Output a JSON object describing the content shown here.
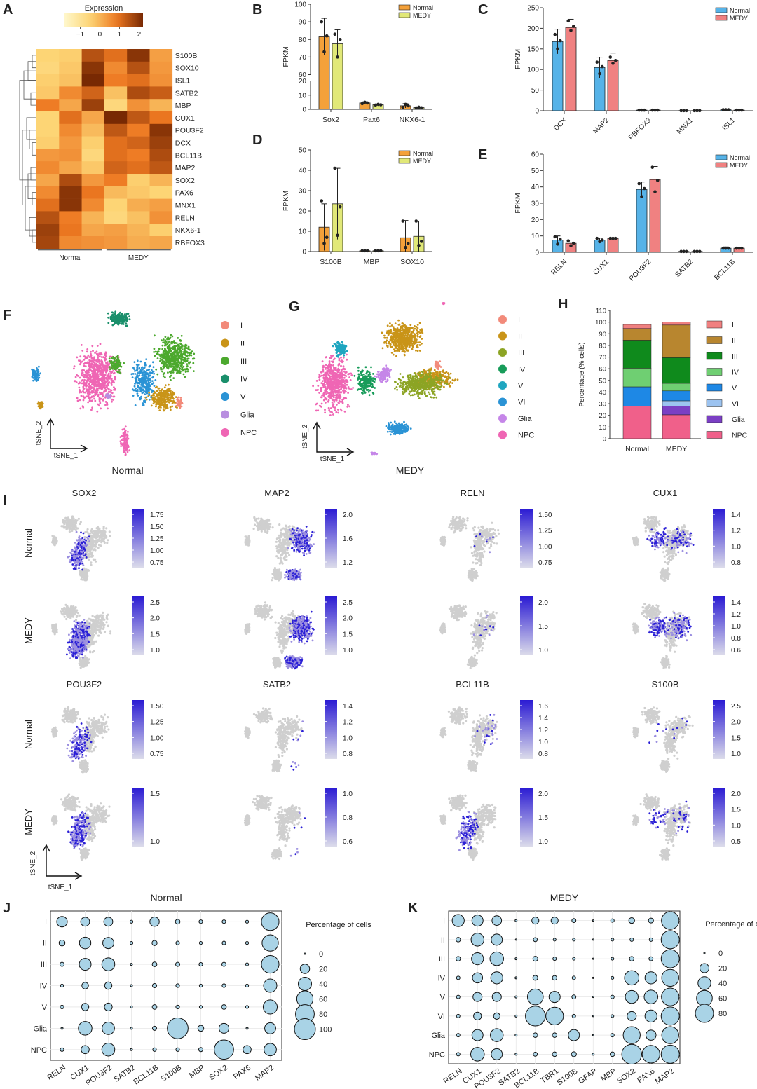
{
  "panels": {
    "A": {
      "letter": "A",
      "legend_title": "Expression",
      "legend_ticks": [
        "−1",
        "0",
        "1",
        "2"
      ],
      "legend_values": [
        -1,
        0,
        1,
        2
      ],
      "legend_range": [
        -1.8,
        2.2
      ],
      "genes": [
        "S100B",
        "SOX10",
        "ISL1",
        "SATB2",
        "MBP",
        "CUX1",
        "POU3F2",
        "DCX",
        "BCL11B",
        "MAP2",
        "SOX2",
        "PAX6",
        "MNX1",
        "RELN",
        "NKX6-1",
        "RBFOX3"
      ],
      "groups": [
        "Normal",
        "MEDY"
      ],
      "matrix": [
        [
          -0.5,
          -0.4,
          1.5,
          1.0,
          2.0,
          0.3
        ],
        [
          -0.6,
          -0.3,
          2.0,
          0.6,
          1.5,
          0.4
        ],
        [
          -0.4,
          -0.2,
          2.2,
          0.8,
          1.0,
          0.5
        ],
        [
          -0.3,
          0.6,
          1.2,
          -0.2,
          1.6,
          1.3
        ],
        [
          0.8,
          0.2,
          1.8,
          -0.6,
          0.5,
          0.0
        ],
        [
          -0.5,
          1.0,
          0.2,
          2.2,
          1.4,
          0.9
        ],
        [
          -0.5,
          0.6,
          -0.1,
          1.4,
          0.8,
          2.0
        ],
        [
          -0.4,
          0.4,
          -0.4,
          1.0,
          1.2,
          1.8
        ],
        [
          0.4,
          0.5,
          -0.6,
          1.0,
          0.8,
          1.6
        ],
        [
          0.6,
          0.2,
          -0.3,
          1.2,
          1.0,
          1.4
        ],
        [
          0.2,
          1.6,
          0.4,
          0.8,
          -0.4,
          0.0
        ],
        [
          0.6,
          2.0,
          0.9,
          -0.1,
          -0.3,
          -0.5
        ],
        [
          1.0,
          2.0,
          0.6,
          -0.5,
          0.1,
          0.3
        ],
        [
          1.5,
          0.8,
          0.0,
          -0.6,
          -0.2,
          0.5
        ],
        [
          1.8,
          0.9,
          0.2,
          0.3,
          0.0,
          -0.4
        ],
        [
          1.7,
          0.6,
          0.5,
          0.4,
          0.1,
          0.2
        ]
      ]
    },
    "B": {
      "letter": "B",
      "ylabel": "FPKM",
      "legend": [
        "Normal",
        "MEDY"
      ],
      "colors": [
        "#f4a13a",
        "#e1e878"
      ],
      "categories": [
        "Sox2",
        "Pax6",
        "NKX6-1"
      ],
      "series": [
        {
          "name": "Normal",
          "values": [
            81.5,
            4.5,
            2.5
          ],
          "errors": [
            10.5,
            0.8,
            1.5
          ],
          "points": [
            [
              90,
              73,
              82
            ],
            [
              4.0,
              5.0,
              4.5
            ],
            [
              1.5,
              3.5,
              2.5
            ]
          ]
        },
        {
          "name": "MEDY",
          "values": [
            77.5,
            3.2,
            1.2
          ],
          "errors": [
            8.0,
            0.5,
            0.5
          ],
          "points": [
            [
              83,
              70,
              80
            ],
            [
              3.0,
              3.5,
              3.2
            ],
            [
              1.0,
              1.5,
              1.1
            ]
          ]
        }
      ],
      "lower_ticks": [
        "0",
        "10",
        "20"
      ],
      "upper_ticks": [
        "60",
        "70",
        "80",
        "90",
        "100"
      ],
      "break": [
        20,
        60
      ],
      "ylim": [
        0,
        100
      ]
    },
    "C": {
      "letter": "C",
      "ylabel": "FPKM",
      "legend": [
        "Normal",
        "MEDY"
      ],
      "colors": [
        "#56b3e8",
        "#f08181"
      ],
      "categories": [
        "DCX",
        "MAP2",
        "RBFOX3",
        "MNX1",
        "ISL1"
      ],
      "series": [
        {
          "name": "Normal",
          "values": [
            168,
            105,
            1.5,
            0.3,
            2.5
          ],
          "errors": [
            30,
            25,
            0.5,
            0.2,
            1.0
          ],
          "points": [
            [
              185,
              150,
              170
            ],
            [
              118,
              90,
              107
            ],
            [
              1.5,
              1.5,
              1.5
            ],
            [
              0.3,
              0.3,
              0.3
            ],
            [
              2.5,
              2.5,
              2.5
            ]
          ]
        },
        {
          "name": "MEDY",
          "values": [
            202,
            122,
            1.5,
            0.3,
            1.5
          ],
          "errors": [
            20,
            18,
            0.5,
            0.2,
            0.8
          ],
          "points": [
            [
              218,
              195,
              205
            ],
            [
              130,
              115,
              122
            ],
            [
              1.5,
              1.5,
              1.5
            ],
            [
              0.3,
              0.3,
              0.3
            ],
            [
              1.5,
              1.5,
              1.5
            ]
          ]
        }
      ],
      "ticks": [
        "0",
        "50",
        "100",
        "150",
        "200",
        "250"
      ],
      "ylim": [
        0,
        250
      ]
    },
    "D": {
      "letter": "D",
      "ylabel": "FPKM",
      "legend": [
        "Normal",
        "MEDY"
      ],
      "colors": [
        "#f4a13a",
        "#e1e878"
      ],
      "categories": [
        "S100B",
        "MBP",
        "SOX10"
      ],
      "series": [
        {
          "name": "Normal",
          "values": [
            12,
            0.4,
            6.8
          ],
          "errors": [
            11.5,
            0.2,
            8.5
          ],
          "points": [
            [
              25,
              4,
              7
            ],
            [
              0.4,
              0.4,
              0.4
            ],
            [
              15,
              2,
              4
            ]
          ]
        },
        {
          "name": "MEDY",
          "values": [
            23.5,
            0.4,
            7.5
          ],
          "errors": [
            17.5,
            0.2,
            7.5
          ],
          "points": [
            [
              41,
              8,
              22
            ],
            [
              0.4,
              0.4,
              0.4
            ],
            [
              15,
              3,
              5
            ]
          ]
        }
      ],
      "ticks": [
        "0",
        "10",
        "20",
        "30",
        "40",
        "50"
      ],
      "ylim": [
        0,
        50
      ]
    },
    "E": {
      "letter": "E",
      "ylabel": "FPKM",
      "legend": [
        "Normal",
        "MEDY"
      ],
      "colors": [
        "#56b3e8",
        "#f08181"
      ],
      "categories": [
        "RELN",
        "CUX1",
        "POU3F2",
        "SATB2",
        "BCL11B"
      ],
      "series": [
        {
          "name": "Normal",
          "values": [
            7.5,
            7.5,
            38.5,
            0.5,
            2.5
          ],
          "errors": [
            2.5,
            1.2,
            4.5,
            0.2,
            0.8
          ],
          "points": [
            [
              9.5,
              5,
              8
            ],
            [
              8.5,
              6.5,
              7.5
            ],
            [
              42,
              34,
              39
            ],
            [
              0.5,
              0.5,
              0.5
            ],
            [
              2.5,
              2.5,
              2.5
            ]
          ]
        },
        {
          "name": "MEDY",
          "values": [
            5.5,
            8.5,
            44.5,
            0.5,
            2.5
          ],
          "errors": [
            2.0,
            0.5,
            8.0,
            0.2,
            0.7
          ],
          "points": [
            [
              7,
              4,
              5.5
            ],
            [
              8.5,
              8.5,
              8.5
            ],
            [
              52,
              37,
              44
            ],
            [
              0.5,
              0.5,
              0.5
            ],
            [
              2.5,
              2.5,
              2.5
            ]
          ]
        }
      ],
      "ticks": [
        "0",
        "10",
        "20",
        "30",
        "40",
        "50",
        "60"
      ],
      "ylim": [
        0,
        60
      ]
    },
    "F": {
      "letter": "F",
      "label": "Normal",
      "xlabel": "tSNE_1",
      "ylabel": "tSNE_2",
      "legend": [
        "I",
        "II",
        "III",
        "IV",
        "V",
        "Glia",
        "NPC"
      ],
      "legend_colors": [
        "#f28a7a",
        "#c99418",
        "#4ca92e",
        "#1a8f6b",
        "#2a93d5",
        "#b98ee0",
        "#ef66b4"
      ]
    },
    "G": {
      "letter": "G",
      "label": "MEDY",
      "xlabel": "tSNE_1",
      "ylabel": "tSNE_2",
      "legend": [
        "I",
        "II",
        "III",
        "IV",
        "V",
        "VI",
        "Glia",
        "NPC"
      ],
      "legend_colors": [
        "#f28a7a",
        "#c99418",
        "#8ca424",
        "#189c5a",
        "#1fa6c0",
        "#2a93d5",
        "#c586e8",
        "#ef66b4"
      ]
    },
    "H": {
      "letter": "H",
      "ylabel": "Percentage (% cells)",
      "categories": [
        "Normal",
        "MEDY"
      ],
      "ticks": [
        "0",
        "10",
        "20",
        "30",
        "40",
        "50",
        "60",
        "70",
        "80",
        "90",
        "100",
        "110"
      ],
      "ylim": [
        0,
        110
      ],
      "legend": [
        "I",
        "II",
        "III",
        "IV",
        "V",
        "VI",
        "Glia",
        "NPC"
      ],
      "colors": [
        "#f08080",
        "#b8862f",
        "#0f8a1c",
        "#6fcf72",
        "#1e88e5",
        "#9cc3f0",
        "#7b3fc4",
        "#f0608a"
      ],
      "segments": {
        "Normal": [
          3.5,
          10,
          24,
          16,
          16.5,
          0,
          0,
          28
        ],
        "MEDY": [
          2.5,
          28,
          22,
          6.5,
          8.5,
          4.5,
          7.5,
          20.5
        ]
      }
    },
    "I": {
      "letter": "I",
      "row_labels": [
        "Normal",
        "MEDY",
        "Normal",
        "MEDY"
      ],
      "xlabel": "tSNE_1",
      "ylabel": "tSNE_2",
      "genes": [
        {
          "name": "SOX2",
          "normal_ticks": [
            "1.75",
            "1.50",
            "1.25",
            "1.00",
            "0.75"
          ],
          "medy_ticks": [
            "2.5",
            "2.0",
            "1.5",
            "1.0"
          ]
        },
        {
          "name": "MAP2",
          "normal_ticks": [
            "2.0",
            "1.6",
            "1.2"
          ],
          "medy_ticks": [
            "2.5",
            "2.0",
            "1.5",
            "1.0"
          ]
        },
        {
          "name": "RELN",
          "normal_ticks": [
            "1.50",
            "1.25",
            "1.00",
            "0.75"
          ],
          "medy_ticks": [
            "2.0",
            "1.5",
            "1.0"
          ]
        },
        {
          "name": "CUX1",
          "normal_ticks": [
            "1.4",
            "1.2",
            "1.0",
            "0.8"
          ],
          "medy_ticks": [
            "1.4",
            "1.2",
            "1.0",
            "0.8",
            "0.6"
          ]
        },
        {
          "name": "POU3F2",
          "normal_ticks": [
            "1.50",
            "1.25",
            "1.00",
            "0.75"
          ],
          "medy_ticks": [
            "1.5",
            "1.0"
          ]
        },
        {
          "name": "SATB2",
          "normal_ticks": [
            "1.4",
            "1.2",
            "1.0",
            "0.8"
          ],
          "medy_ticks": [
            "1.0",
            "0.8",
            "0.6"
          ]
        },
        {
          "name": "BCL11B",
          "normal_ticks": [
            "1.6",
            "1.4",
            "1.2",
            "1.0",
            "0.8"
          ],
          "medy_ticks": [
            "2.0",
            "1.5",
            "1.0"
          ]
        },
        {
          "name": "S100B",
          "normal_ticks": [
            "2.5",
            "2.0",
            "1.5",
            "1.0"
          ],
          "medy_ticks": [
            "2.0",
            "1.5",
            "1.0",
            "0.5"
          ]
        }
      ]
    },
    "J": {
      "letter": "J",
      "title": "Normal",
      "rows": [
        "I",
        "II",
        "III",
        "IV",
        "V",
        "Glia",
        "NPC"
      ],
      "genes": [
        "RELN",
        "CUX1",
        "POU3F2",
        "SATB2",
        "BCL11B",
        "S100B",
        "MBP",
        "SOX2",
        "PAX6",
        "MAP2"
      ],
      "legend_title": "Percentage of cells",
      "legend_values": [
        0,
        20,
        40,
        60,
        80,
        100
      ],
      "legend_labels": [
        "0",
        "20",
        "40",
        "60",
        "80",
        "100"
      ],
      "values": [
        [
          25,
          18,
          18,
          2,
          20,
          5,
          3,
          3,
          2,
          70
        ],
        [
          8,
          30,
          28,
          2,
          6,
          3,
          2,
          3,
          2,
          60
        ],
        [
          4,
          32,
          38,
          1,
          5,
          4,
          3,
          4,
          2,
          70
        ],
        [
          2,
          10,
          12,
          1,
          4,
          3,
          2,
          3,
          2,
          40
        ],
        [
          3,
          12,
          14,
          1,
          5,
          3,
          2,
          5,
          2,
          45
        ],
        [
          1,
          42,
          35,
          1,
          4,
          98,
          8,
          22,
          1,
          28
        ],
        [
          3,
          15,
          38,
          1,
          3,
          3,
          4,
          85,
          15,
          35
        ]
      ]
    },
    "K": {
      "letter": "K",
      "title": "MEDY",
      "rows": [
        "I",
        "II",
        "III",
        "IV",
        "V",
        "VI",
        "Glia",
        "NPC"
      ],
      "genes": [
        "RELN",
        "CUX1",
        "POU3F2",
        "SATB2",
        "BCL11B",
        "TBR1",
        "S100B",
        "GFAP",
        "MBP",
        "SOX2",
        "PAX6",
        "MAP2"
      ],
      "legend_title": "Percentage of cells",
      "legend_values": [
        0,
        20,
        40,
        60,
        80
      ],
      "legend_labels": [
        "0",
        "20",
        "40",
        "60",
        "80"
      ],
      "values": [
        [
          35,
          30,
          22,
          1,
          12,
          12,
          4,
          0,
          3,
          8,
          6,
          75
        ],
        [
          5,
          40,
          30,
          0,
          4,
          2,
          2,
          0,
          2,
          3,
          3,
          80
        ],
        [
          5,
          35,
          45,
          1,
          6,
          3,
          2,
          0,
          2,
          5,
          4,
          80
        ],
        [
          3,
          25,
          35,
          1,
          6,
          5,
          3,
          0,
          2,
          50,
          35,
          70
        ],
        [
          3,
          20,
          20,
          1,
          60,
          30,
          4,
          0,
          3,
          40,
          45,
          75
        ],
        [
          3,
          15,
          10,
          1,
          95,
          75,
          3,
          0,
          2,
          20,
          35,
          80
        ],
        [
          3,
          30,
          40,
          1,
          5,
          5,
          30,
          0,
          3,
          70,
          25,
          70
        ],
        [
          3,
          45,
          30,
          1,
          4,
          5,
          6,
          1,
          5,
          95,
          75,
          80
        ]
      ]
    }
  }
}
